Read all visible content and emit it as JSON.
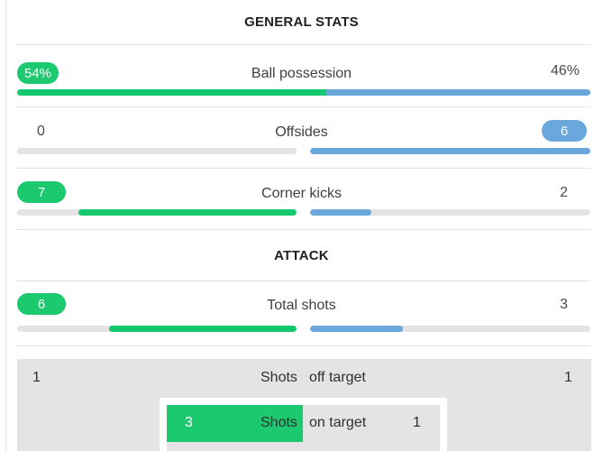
{
  "sections": {
    "general": "GENERAL STATS",
    "attack": "ATTACK"
  },
  "stats": {
    "possession": {
      "label": "Ball possession",
      "home": "54%",
      "away": "46%",
      "home_share": 0.54
    },
    "offsides": {
      "label": "Offsides",
      "home": "0",
      "away": "6",
      "home_fill": 0,
      "away_fill": 1
    },
    "corners": {
      "label": "Corner kicks",
      "home": "7",
      "away": "2",
      "home_fill": 0.78,
      "away_fill": 0.22
    },
    "total_shots": {
      "label": "Total shots",
      "home": "6",
      "away": "3",
      "home_fill": 0.67,
      "away_fill": 0.33
    }
  },
  "shots_box": {
    "off_target": {
      "left_label": "Shots",
      "right_label": "off target",
      "home": "1",
      "away": "1"
    },
    "on_target": {
      "left_label": "Shots",
      "right_label": "on target",
      "home": "3",
      "away": "1"
    }
  },
  "colors": {
    "home": "#1cc96f",
    "away": "#6aa8dc",
    "track": "#e4e4e4"
  }
}
